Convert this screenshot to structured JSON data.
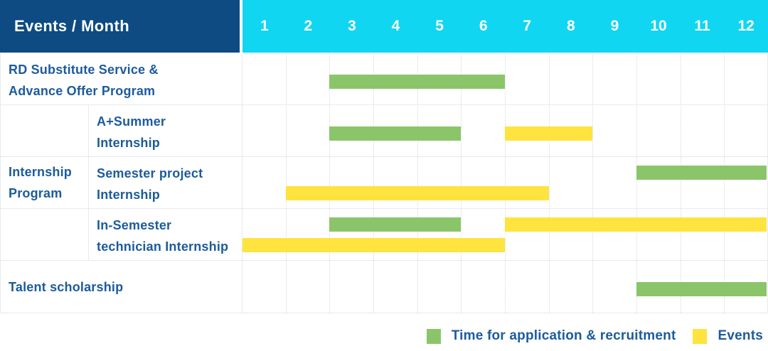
{
  "header": {
    "title": "Events / Month",
    "months": [
      "1",
      "2",
      "3",
      "4",
      "5",
      "6",
      "7",
      "8",
      "9",
      "10",
      "11",
      "12"
    ]
  },
  "labels": {
    "rd_program": [
      "RD Substitute Service &",
      "Advance Offer Program"
    ],
    "internship_group": [
      "Internship",
      "Program"
    ],
    "a_summer": [
      "A+Summer",
      "Internship"
    ],
    "semester_project": [
      "Semester project",
      "Internship"
    ],
    "in_semester": [
      "In-Semester",
      "technician Internship"
    ],
    "talent": [
      "Talent scholarship"
    ]
  },
  "legend": {
    "items": [
      {
        "label": "Time for application & recruitment",
        "kind": "recruitment",
        "color": "#8bc56a"
      },
      {
        "label": "Events",
        "kind": "events",
        "color": "#ffe33e"
      }
    ]
  },
  "colors": {
    "header_bg": "#0d4b82",
    "month_header_bg": "#10d6f2",
    "recruitment_bar": "#8bc56a",
    "events_bar": "#ffe33e",
    "label_text": "#1c5b9c",
    "grid_line": "#e7eaec"
  },
  "chart_data": {
    "type": "bar",
    "subtype": "gantt-timeline",
    "title": "Events / Month",
    "x": {
      "label": "Month",
      "ticks": [
        1,
        2,
        3,
        4,
        5,
        6,
        7,
        8,
        9,
        10,
        11,
        12
      ],
      "range": [
        1,
        12
      ]
    },
    "legend_entries": [
      "Time for application & recruitment",
      "Events"
    ],
    "rows": [
      {
        "label": "RD Substitute Service & Advance Offer Program",
        "group": null,
        "spans": [
          {
            "series": "Time for application & recruitment",
            "start_month": 3,
            "end_month": 6,
            "lane": "middle"
          }
        ]
      },
      {
        "label": "A+Summer Internship",
        "group": "Internship Program",
        "spans": [
          {
            "series": "Time for application & recruitment",
            "start_month": 3,
            "end_month": 5,
            "lane": "middle"
          },
          {
            "series": "Events",
            "start_month": 7,
            "end_month": 8,
            "lane": "middle"
          }
        ]
      },
      {
        "label": "Semester project Internship",
        "group": "Internship Program",
        "spans": [
          {
            "series": "Time for application & recruitment",
            "start_month": 10,
            "end_month": 12,
            "lane": "top"
          },
          {
            "series": "Events",
            "start_month": 2,
            "end_month": 7,
            "lane": "bottom"
          }
        ]
      },
      {
        "label": "In-Semester technician Internship",
        "group": "Internship Program",
        "spans": [
          {
            "series": "Time for application & recruitment",
            "start_month": 3,
            "end_month": 5,
            "lane": "top"
          },
          {
            "series": "Events",
            "start_month": 7,
            "end_month": 12,
            "lane": "top"
          },
          {
            "series": "Events",
            "start_month": 1,
            "end_month": 6,
            "lane": "bottom"
          }
        ]
      },
      {
        "label": "Talent scholarship",
        "group": null,
        "spans": [
          {
            "series": "Time for application & recruitment",
            "start_month": 10,
            "end_month": 12,
            "lane": "middle"
          }
        ]
      }
    ]
  }
}
